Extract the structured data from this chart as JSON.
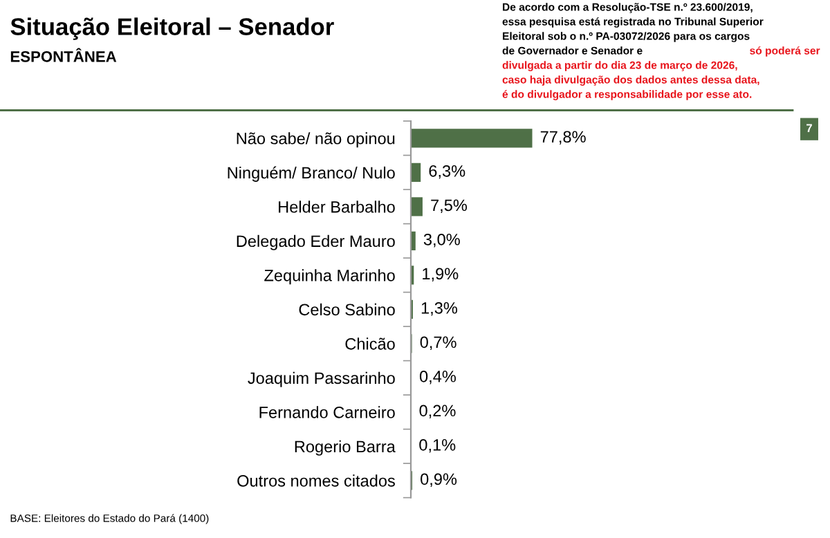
{
  "chart_data": {
    "type": "bar",
    "orientation": "horizontal",
    "title": "Situação Eleitoral – Senador",
    "subtitle": "ESPONTÂNEA",
    "categories": [
      "Não sabe/ não opinou",
      "Ninguém/ Branco/ Nulo",
      "Helder Barbalho",
      "Delegado Eder Mauro",
      "Zequinha Marinho",
      "Celso Sabino",
      "Chicão",
      "Joaquim Passarinho",
      "Fernando Carneiro",
      "Rogerio Barra",
      "Outros nomes citados"
    ],
    "values": [
      77.8,
      6.3,
      7.5,
      3.0,
      1.9,
      1.3,
      0.7,
      0.4,
      0.2,
      0.1,
      0.9
    ],
    "value_labels": [
      "77,8%",
      "6,3%",
      "7,5%",
      "3,0%",
      "1,9%",
      "1,3%",
      "0,7%",
      "0,4%",
      "0,2%",
      "0,1%",
      "0,9%"
    ],
    "color": "#4f7047",
    "grid": false,
    "legend": false,
    "annotations": [
      "De acordo com a Resolução-TSE n.º 23.600/2019,\nessa pesquisa está registrada no Tribunal Superior\nEleitoral sob o n.º PA-03072/2026 para os cargos\nde Governador e Senador e",
      "só poderá ser\ndivulgada a partir do dia 23 de março de 2026,\ncaso haja divulgação dos dados antes dessa data,\né do divulgador a responsabilidade por esse ato.",
      "7",
      "BASE: Eleitores do Estado do Pará (1400)"
    ]
  }
}
